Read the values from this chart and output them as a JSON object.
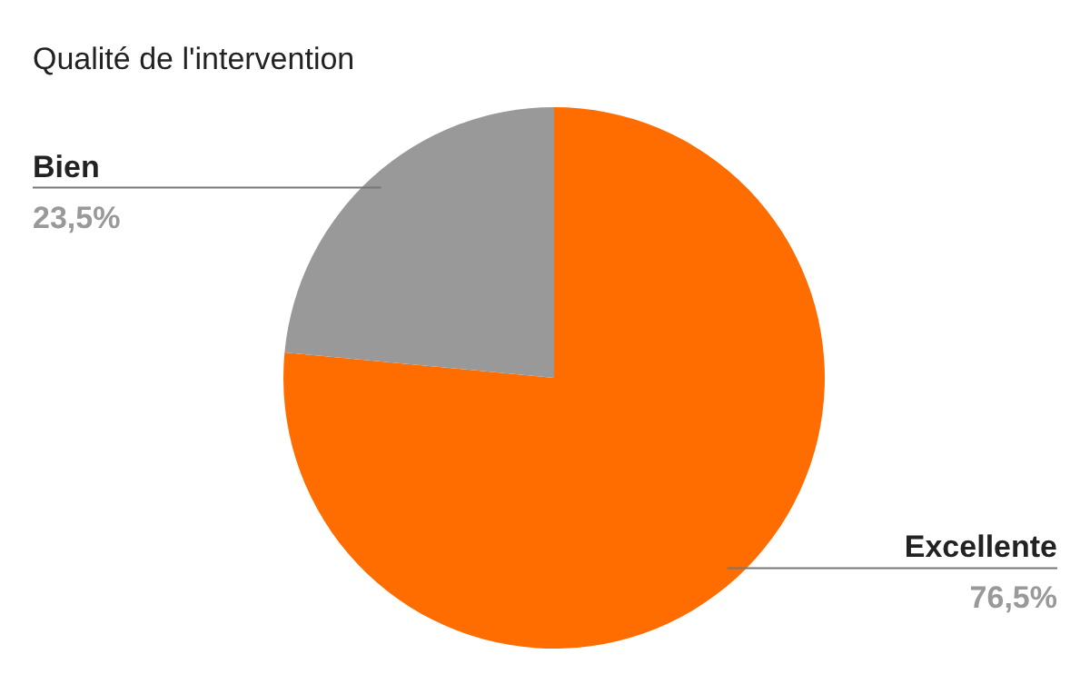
{
  "chart_data": {
    "type": "pie",
    "title": "Qualité de l'intervention",
    "categories": [
      "Excellente",
      "Bien"
    ],
    "values": [
      76.5,
      23.5
    ],
    "colors": [
      "#ff6d01",
      "#999999"
    ],
    "value_labels": [
      "76,5%",
      "23,5%"
    ]
  }
}
